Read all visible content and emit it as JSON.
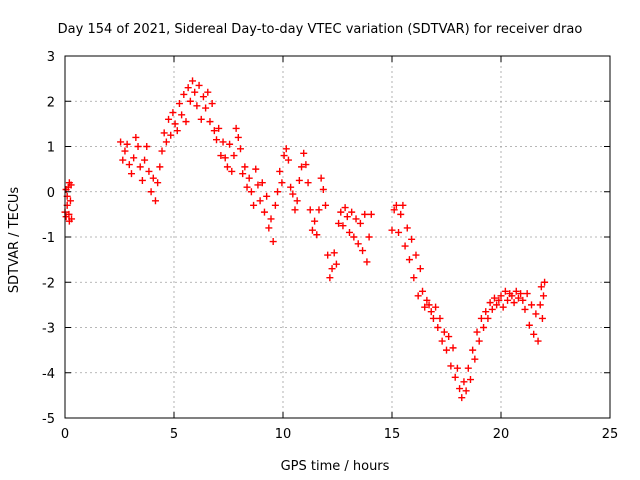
{
  "chart_data": {
    "type": "scatter",
    "title": "Day 154 of 2021, Sidereal Day-to-day VTEC variation (SDTVAR) for receiver drao",
    "xlabel": "GPS time / hours",
    "ylabel": "SDTVAR / TECUs",
    "xlim": [
      0,
      25
    ],
    "ylim": [
      -5,
      3
    ],
    "xticks": [
      "0",
      "5",
      "10",
      "15",
      "20",
      "25"
    ],
    "yticks": [
      "-5",
      "-4",
      "-3",
      "-2",
      "-1",
      "0",
      "1",
      "2",
      "3"
    ],
    "grid": true,
    "marker": "+",
    "series": [
      {
        "name": "SDTVAR",
        "color": "#ff0000",
        "points": [
          [
            0.0,
            -0.45
          ],
          [
            0.05,
            -0.55
          ],
          [
            0.1,
            -0.3
          ],
          [
            0.15,
            0.1
          ],
          [
            0.2,
            0.2
          ],
          [
            0.25,
            -0.2
          ],
          [
            0.3,
            -0.6
          ],
          [
            0.2,
            -0.65
          ],
          [
            0.1,
            -0.1
          ],
          [
            0.05,
            0.05
          ],
          [
            0.28,
            0.15
          ],
          [
            0.18,
            -0.5
          ],
          [
            2.55,
            1.1
          ],
          [
            2.65,
            0.7
          ],
          [
            2.75,
            0.9
          ],
          [
            2.85,
            1.05
          ],
          [
            2.95,
            0.6
          ],
          [
            3.05,
            0.4
          ],
          [
            3.15,
            0.75
          ],
          [
            3.25,
            1.2
          ],
          [
            3.35,
            1.0
          ],
          [
            3.45,
            0.55
          ],
          [
            3.55,
            0.25
          ],
          [
            3.65,
            0.7
          ],
          [
            3.75,
            1.0
          ],
          [
            3.85,
            0.45
          ],
          [
            3.95,
            0.0
          ],
          [
            4.05,
            0.3
          ],
          [
            4.15,
            -0.2
          ],
          [
            4.25,
            0.2
          ],
          [
            4.35,
            0.55
          ],
          [
            4.45,
            0.9
          ],
          [
            4.55,
            1.3
          ],
          [
            4.65,
            1.1
          ],
          [
            4.75,
            1.6
          ],
          [
            4.85,
            1.25
          ],
          [
            4.95,
            1.75
          ],
          [
            5.05,
            1.5
          ],
          [
            5.15,
            1.35
          ],
          [
            5.25,
            1.95
          ],
          [
            5.35,
            1.7
          ],
          [
            5.45,
            2.15
          ],
          [
            5.55,
            1.55
          ],
          [
            5.65,
            2.3
          ],
          [
            5.75,
            2.0
          ],
          [
            5.85,
            2.45
          ],
          [
            5.95,
            2.2
          ],
          [
            6.05,
            1.9
          ],
          [
            6.15,
            2.35
          ],
          [
            6.25,
            1.6
          ],
          [
            6.35,
            2.1
          ],
          [
            6.45,
            1.85
          ],
          [
            6.55,
            2.2
          ],
          [
            6.65,
            1.55
          ],
          [
            6.75,
            1.95
          ],
          [
            6.85,
            1.35
          ],
          [
            6.95,
            1.15
          ],
          [
            7.05,
            1.4
          ],
          [
            7.15,
            0.8
          ],
          [
            7.25,
            1.1
          ],
          [
            7.35,
            0.75
          ],
          [
            7.45,
            0.55
          ],
          [
            7.55,
            1.05
          ],
          [
            7.65,
            0.45
          ],
          [
            7.75,
            0.8
          ],
          [
            7.85,
            1.4
          ],
          [
            7.95,
            1.2
          ],
          [
            8.05,
            0.95
          ],
          [
            8.15,
            0.4
          ],
          [
            8.25,
            0.55
          ],
          [
            8.35,
            0.1
          ],
          [
            8.45,
            0.3
          ],
          [
            8.55,
            0.0
          ],
          [
            8.65,
            -0.3
          ],
          [
            8.75,
            0.5
          ],
          [
            8.85,
            0.15
          ],
          [
            8.95,
            -0.2
          ],
          [
            9.05,
            0.2
          ],
          [
            9.15,
            -0.45
          ],
          [
            9.25,
            -0.1
          ],
          [
            9.35,
            -0.8
          ],
          [
            9.45,
            -0.6
          ],
          [
            9.55,
            -1.1
          ],
          [
            9.65,
            -0.3
          ],
          [
            9.75,
            0.0
          ],
          [
            9.85,
            0.45
          ],
          [
            9.95,
            0.2
          ],
          [
            10.05,
            0.8
          ],
          [
            10.15,
            0.95
          ],
          [
            10.25,
            0.7
          ],
          [
            10.35,
            0.1
          ],
          [
            10.45,
            -0.05
          ],
          [
            10.55,
            -0.4
          ],
          [
            10.65,
            -0.2
          ],
          [
            10.75,
            0.25
          ],
          [
            10.85,
            0.55
          ],
          [
            10.95,
            0.85
          ],
          [
            11.05,
            0.6
          ],
          [
            11.15,
            0.2
          ],
          [
            11.25,
            -0.4
          ],
          [
            11.35,
            -0.85
          ],
          [
            11.45,
            -0.65
          ],
          [
            11.55,
            -0.95
          ],
          [
            11.65,
            -0.4
          ],
          [
            11.75,
            0.3
          ],
          [
            11.85,
            0.05
          ],
          [
            11.95,
            -0.3
          ],
          [
            12.05,
            -1.4
          ],
          [
            12.15,
            -1.9
          ],
          [
            12.25,
            -1.7
          ],
          [
            12.35,
            -1.35
          ],
          [
            12.45,
            -1.6
          ],
          [
            12.55,
            -0.7
          ],
          [
            12.65,
            -0.45
          ],
          [
            12.75,
            -0.75
          ],
          [
            12.85,
            -0.35
          ],
          [
            12.95,
            -0.55
          ],
          [
            13.05,
            -0.9
          ],
          [
            13.15,
            -0.45
          ],
          [
            13.25,
            -1.0
          ],
          [
            13.35,
            -0.6
          ],
          [
            13.45,
            -1.15
          ],
          [
            13.55,
            -0.7
          ],
          [
            13.65,
            -1.3
          ],
          [
            13.75,
            -0.5
          ],
          [
            13.85,
            -1.55
          ],
          [
            13.95,
            -1.0
          ],
          [
            14.05,
            -0.5
          ],
          [
            15.0,
            -0.85
          ],
          [
            15.1,
            -0.4
          ],
          [
            15.2,
            -0.3
          ],
          [
            15.3,
            -0.9
          ],
          [
            15.4,
            -0.5
          ],
          [
            15.5,
            -0.3
          ],
          [
            15.6,
            -1.2
          ],
          [
            15.7,
            -0.8
          ],
          [
            15.8,
            -1.5
          ],
          [
            15.9,
            -1.05
          ],
          [
            16.0,
            -1.9
          ],
          [
            16.1,
            -1.4
          ],
          [
            16.2,
            -2.3
          ],
          [
            16.3,
            -1.7
          ],
          [
            16.4,
            -2.2
          ],
          [
            16.5,
            -2.55
          ],
          [
            16.6,
            -2.4
          ],
          [
            16.7,
            -2.5
          ],
          [
            16.8,
            -2.65
          ],
          [
            16.9,
            -2.8
          ],
          [
            17.0,
            -2.55
          ],
          [
            17.1,
            -3.0
          ],
          [
            17.2,
            -2.8
          ],
          [
            17.3,
            -3.3
          ],
          [
            17.4,
            -3.1
          ],
          [
            17.5,
            -3.5
          ],
          [
            17.6,
            -3.2
          ],
          [
            17.7,
            -3.85
          ],
          [
            17.8,
            -3.45
          ],
          [
            17.9,
            -4.1
          ],
          [
            18.0,
            -3.9
          ],
          [
            18.1,
            -4.35
          ],
          [
            18.2,
            -4.55
          ],
          [
            18.3,
            -4.2
          ],
          [
            18.4,
            -4.4
          ],
          [
            18.5,
            -3.9
          ],
          [
            18.6,
            -4.15
          ],
          [
            18.7,
            -3.5
          ],
          [
            18.8,
            -3.7
          ],
          [
            18.9,
            -3.1
          ],
          [
            19.0,
            -3.3
          ],
          [
            19.1,
            -2.8
          ],
          [
            19.2,
            -3.0
          ],
          [
            19.3,
            -2.65
          ],
          [
            19.4,
            -2.8
          ],
          [
            19.5,
            -2.45
          ],
          [
            19.6,
            -2.6
          ],
          [
            19.7,
            -2.35
          ],
          [
            19.8,
            -2.5
          ],
          [
            19.9,
            -2.4
          ],
          [
            20.0,
            -2.3
          ],
          [
            20.1,
            -2.55
          ],
          [
            20.2,
            -2.2
          ],
          [
            20.3,
            -2.4
          ],
          [
            20.4,
            -2.25
          ],
          [
            20.5,
            -2.3
          ],
          [
            20.6,
            -2.45
          ],
          [
            20.7,
            -2.2
          ],
          [
            20.8,
            -2.35
          ],
          [
            20.9,
            -2.25
          ],
          [
            21.0,
            -2.4
          ],
          [
            21.1,
            -2.6
          ],
          [
            21.2,
            -2.25
          ],
          [
            21.3,
            -2.95
          ],
          [
            21.4,
            -2.5
          ],
          [
            21.5,
            -3.15
          ],
          [
            21.6,
            -2.7
          ],
          [
            21.7,
            -3.3
          ],
          [
            21.8,
            -2.5
          ],
          [
            21.9,
            -2.8
          ],
          [
            22.0,
            -2.0
          ],
          [
            21.95,
            -2.3
          ],
          [
            21.85,
            -2.1
          ]
        ]
      }
    ]
  }
}
